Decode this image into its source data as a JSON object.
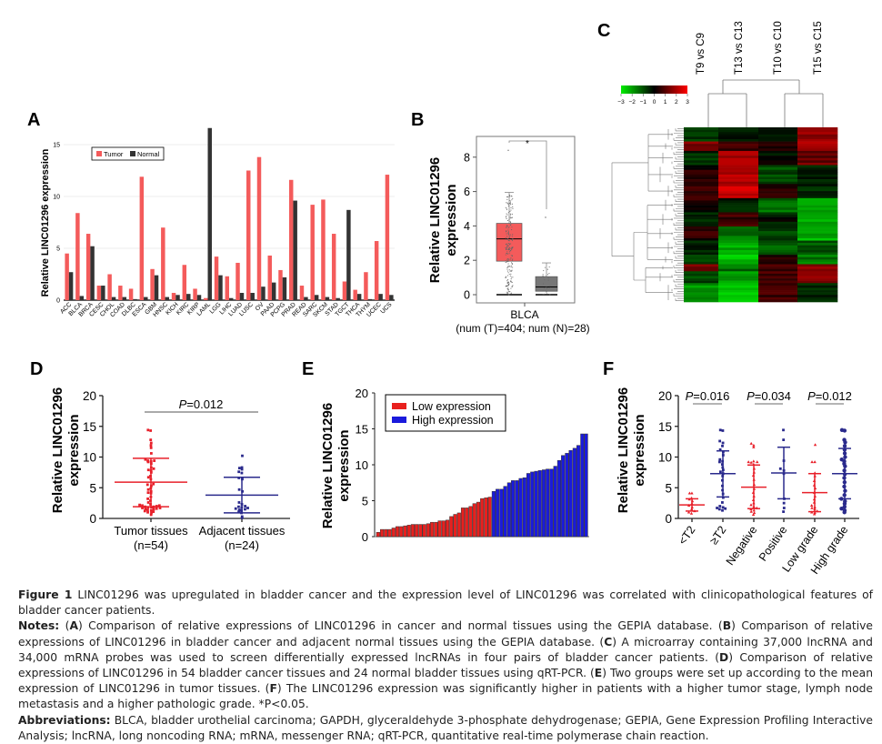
{
  "chart_data": [
    {
      "panel": "A",
      "type": "bar",
      "title": "",
      "xlabel": "",
      "ylabel": "Relative LINC01296 expression",
      "ylim": [
        0,
        17
      ],
      "yticks": [
        "0",
        "5",
        "10",
        "15"
      ],
      "grid": true,
      "legend_position": "top-left",
      "categories": [
        "ACC",
        "BLCA",
        "BRCA",
        "CESC",
        "CHOL",
        "COAD",
        "DLBC",
        "ESCA",
        "GBM",
        "HNSC",
        "KICH",
        "KIRC",
        "KIRP",
        "LAML",
        "LGG",
        "LIHC",
        "LUAD",
        "LUSC",
        "OV",
        "PAAD",
        "PCPG",
        "PRAD",
        "READ",
        "SARC",
        "SKCM",
        "STAD",
        "TGCT",
        "THCA",
        "THYM",
        "UCEC",
        "UCS"
      ],
      "series": [
        {
          "name": "Tumor",
          "color": "#f45b5b",
          "values": [
            4.5,
            8.4,
            6.4,
            1.4,
            2.5,
            1.4,
            1.1,
            11.9,
            3.0,
            7.0,
            0.7,
            3.4,
            1.1,
            0.2,
            4.2,
            2.3,
            3.6,
            12.5,
            13.8,
            4.3,
            2.9,
            11.6,
            1.4,
            9.2,
            9.7,
            6.4,
            1.8,
            1.0,
            2.7,
            5.7,
            12.1
          ]
        },
        {
          "name": "Normal",
          "color": "#333333",
          "values": [
            2.7,
            0.4,
            5.2,
            1.4,
            0.3,
            0.3,
            0.1,
            0.3,
            2.4,
            0.3,
            0.5,
            0.6,
            0.5,
            16.6,
            2.4,
            0.2,
            0.7,
            0.7,
            1.3,
            1.7,
            2.2,
            9.6,
            0.3,
            0.5,
            0.3,
            0.2,
            8.7,
            0.6,
            0.1,
            0.6,
            0.5
          ]
        }
      ]
    },
    {
      "panel": "B",
      "type": "box",
      "title": "",
      "xlabel": "BLCA",
      "xsublabel": "(num (T)=404; num (N)=28)",
      "ylabel": "Relative LINC01296 expression",
      "ylim": [
        -0.3,
        9.4
      ],
      "yticks": [
        "0",
        "2",
        "4",
        "6",
        "8"
      ],
      "significance": "*",
      "boxes": [
        {
          "name": "Tumor",
          "color": "#f45b5b",
          "q1": 1.95,
          "median": 3.25,
          "q3": 4.15,
          "whisker_low": 0,
          "whisker_high": 5.95,
          "outliers": [
            8.4
          ],
          "n": 404
        },
        {
          "name": "Normal",
          "color": "#777777",
          "q1": 0.2,
          "median": 0.45,
          "q3": 1.05,
          "whisker_low": 0,
          "whisker_high": 1.85,
          "outliers": [
            4.5
          ],
          "n": 28
        }
      ]
    },
    {
      "panel": "C",
      "type": "heatmap",
      "title": "",
      "columns": [
        "T9 vs C9",
        "T13 vs C13",
        "T10 vs C10",
        "T15 vs C15"
      ],
      "colorscale": {
        "min": -3,
        "max": 3,
        "low": "#00dd00",
        "mid": "#000000",
        "high": "#ff0000",
        "ticks": [
          "−3",
          "−2",
          "−1",
          "0",
          "1",
          "2",
          "3"
        ]
      },
      "row_blocks": [
        {
          "rows": 6,
          "values": [
            -0.8,
            -0.3,
            -0.6,
            1.8
          ]
        },
        {
          "rows": 4,
          "values": [
            1.5,
            0.8,
            0.6,
            2.0
          ]
        },
        {
          "rows": 6,
          "values": [
            -0.6,
            1.8,
            -0.2,
            1.2
          ]
        },
        {
          "rows": 8,
          "values": [
            0.3,
            2.0,
            -0.9,
            -0.3
          ]
        },
        {
          "rows": 6,
          "values": [
            0.6,
            2.3,
            0.5,
            -0.5
          ]
        },
        {
          "rows": 6,
          "values": [
            0.4,
            -0.3,
            -1.4,
            -2.0
          ]
        },
        {
          "rows": 6,
          "values": [
            -0.5,
            0.7,
            -0.3,
            -2.2
          ]
        },
        {
          "rows": 6,
          "values": [
            0.5,
            -1.6,
            -0.8,
            -2.4
          ]
        },
        {
          "rows": 6,
          "values": [
            -0.3,
            -2.3,
            -1.2,
            -1.1
          ]
        },
        {
          "rows": 4,
          "values": [
            -0.8,
            -2.6,
            0.6,
            -1.6
          ]
        },
        {
          "rows": 3,
          "values": [
            1.3,
            -1.4,
            0.8,
            1.8
          ]
        },
        {
          "rows": 5,
          "values": [
            -1.0,
            -2.2,
            0.9,
            1.5
          ]
        },
        {
          "rows": 8,
          "values": [
            -2.0,
            -2.6,
            0.8,
            -0.4
          ]
        }
      ]
    },
    {
      "panel": "D",
      "type": "scatter",
      "title": "",
      "ylabel": "Relative LINC01296 expression",
      "ylim": [
        0,
        20
      ],
      "yticks": [
        "0",
        "5",
        "10",
        "15",
        "20"
      ],
      "categories": [
        "Tumor tissues",
        "Adjacent tissues"
      ],
      "category_n": [
        "(n=54)",
        "(n=24)"
      ],
      "pvalue_label": "P",
      "pvalue_value": "=0.012",
      "groups": [
        {
          "name": "Tumor tissues",
          "color": "#e8202a",
          "mean": 5.9,
          "sd_low": 1.9,
          "sd_high": 9.8,
          "points": [
            0.6,
            0.9,
            1.0,
            1.1,
            1.2,
            1.3,
            1.4,
            1.5,
            1.5,
            1.6,
            1.7,
            1.7,
            1.8,
            1.8,
            1.9,
            1.9,
            2.0,
            2.1,
            2.1,
            2.2,
            2.3,
            2.6,
            2.9,
            3.2,
            3.5,
            4.1,
            4.2,
            4.4,
            4.7,
            4.9,
            5.3,
            5.5,
            5.6,
            6.4,
            6.7,
            6.9,
            7.5,
            7.8,
            7.9,
            8.1,
            8.3,
            8.9,
            9.2,
            9.3,
            9.4,
            9.4,
            9.6,
            10.6,
            11.5,
            11.9,
            12.3,
            12.8,
            14.3,
            14.4
          ]
        },
        {
          "name": "Adjacent tissues",
          "color": "#2a2a8c",
          "mean": 3.8,
          "sd_low": 0.9,
          "sd_high": 6.7,
          "points": [
            0.1,
            0.3,
            0.9,
            1.1,
            1.3,
            1.4,
            1.5,
            1.6,
            1.7,
            1.8,
            1.9,
            2.0,
            2.3,
            2.6,
            4.4,
            4.7,
            6.4,
            6.6,
            7.4,
            7.6,
            8.0,
            8.2,
            8.3,
            10.2
          ]
        }
      ]
    },
    {
      "panel": "E",
      "type": "bar",
      "title": "",
      "ylabel": "Relative LINC01296 expression",
      "ylim": [
        0,
        20
      ],
      "yticks": [
        "0",
        "5",
        "10",
        "15",
        "20"
      ],
      "legend_position": "top-left",
      "series": [
        {
          "name": "Low expression",
          "color": "#e8201e",
          "values": [
            0.6,
            1.0,
            1.0,
            1.0,
            1.2,
            1.4,
            1.4,
            1.5,
            1.6,
            1.7,
            1.7,
            1.7,
            1.7,
            1.8,
            2.0,
            2.0,
            2.2,
            2.2,
            2.3,
            2.8,
            3.1,
            3.3,
            4.0,
            4.0,
            4.2,
            4.6,
            4.8,
            5.3,
            5.4,
            5.5
          ]
        },
        {
          "name": "High expression",
          "color": "#1a1adc",
          "values": [
            6.3,
            6.6,
            6.6,
            7.0,
            7.5,
            7.8,
            7.8,
            8.1,
            8.2,
            8.8,
            9.0,
            9.1,
            9.2,
            9.3,
            9.4,
            9.4,
            9.8,
            10.6,
            11.3,
            11.6,
            12.0,
            12.3,
            12.7,
            14.3,
            14.3
          ]
        }
      ]
    },
    {
      "panel": "F",
      "type": "scatter",
      "title": "",
      "ylabel": "Relative LINC01296 expression",
      "ylim": [
        0,
        20
      ],
      "yticks": [
        "0",
        "5",
        "10",
        "15",
        "20"
      ],
      "categories": [
        "<T2",
        "≥T2",
        "Negative",
        "Positive",
        "Low grade",
        "High grade"
      ],
      "comparisons": [
        {
          "groups": [
            0,
            1
          ],
          "label": "P",
          "value": "=0.016"
        },
        {
          "groups": [
            2,
            3
          ],
          "label": "P",
          "value": "=0.034"
        },
        {
          "groups": [
            4,
            5
          ],
          "label": "P",
          "value": "=0.012"
        }
      ],
      "groups": [
        {
          "name": "<T2",
          "color": "#e8202a",
          "mean": 2.2,
          "sd_low": 1.2,
          "sd_high": 3.2,
          "points": [
            0.8,
            1.0,
            1.2,
            1.5,
            1.8,
            2.1,
            2.4,
            2.8,
            3.1,
            3.3,
            4.1,
            4.1
          ]
        },
        {
          "name": "≥T2",
          "color": "#2a2a8c",
          "mean": 7.3,
          "sd_low": 3.5,
          "sd_high": 11.0,
          "points": [
            1.3,
            1.5,
            1.6,
            1.7,
            1.8,
            2.0,
            2.6,
            3.4,
            4.0,
            4.6,
            5.3,
            6.2,
            6.9,
            7.3,
            7.6,
            7.9,
            8.3,
            8.8,
            9.2,
            9.3,
            9.6,
            10.3,
            10.8,
            11.2,
            11.8,
            12.3,
            12.6,
            14.3,
            14.4
          ]
        },
        {
          "name": "Negative",
          "color": "#e8202a",
          "mean": 5.1,
          "sd_low": 1.6,
          "sd_high": 8.7,
          "points": [
            0.6,
            0.9,
            1.1,
            1.3,
            1.5,
            1.7,
            1.9,
            2.2,
            2.5,
            3.0,
            3.6,
            4.2,
            4.8,
            5.5,
            6.3,
            7.0,
            7.5,
            8.1,
            8.8,
            9.1,
            9.2,
            9.2,
            9.3,
            11.6,
            11.9,
            12.2
          ]
        },
        {
          "name": "Positive",
          "color": "#2a2a8c",
          "mean": 7.4,
          "sd_low": 3.2,
          "sd_high": 11.6,
          "points": [
            1.1,
            1.7,
            2.5,
            3.2,
            7.3,
            7.8,
            8.1,
            9.4,
            12.8,
            14.4
          ]
        },
        {
          "name": "Low grade",
          "color": "#e8202a",
          "mean": 4.2,
          "sd_low": 1.1,
          "sd_high": 7.3,
          "points": [
            0.7,
            0.9,
            1.0,
            1.2,
            1.5,
            1.7,
            1.8,
            2.1,
            2.6,
            3.1,
            3.6,
            4.2,
            4.9,
            5.4,
            6.1,
            6.9,
            7.4,
            9.2,
            9.2,
            12.0
          ]
        },
        {
          "name": "High grade",
          "color": "#2a2a8c",
          "mean": 7.3,
          "sd_low": 3.2,
          "sd_high": 11.4,
          "points": [
            1.0,
            1.3,
            1.6,
            1.9,
            2.4,
            2.8,
            3.2,
            3.8,
            4.5,
            5.2,
            5.9,
            6.6,
            7.2,
            7.8,
            8.5,
            8.9,
            9.3,
            9.6,
            10.0,
            10.6,
            11.2,
            11.8,
            12.4,
            12.8,
            14.3,
            14.4
          ]
        }
      ]
    }
  ],
  "panels": {
    "A": {
      "letter": "A",
      "legend": [
        "Tumor",
        "Normal"
      ]
    },
    "B": {
      "letter": "B",
      "ylabel_line1": "Relative LINC01296",
      "ylabel_line2": "expression"
    },
    "C": {
      "letter": "C"
    },
    "D": {
      "letter": "D",
      "ylabel_line1": "Relative LINC01296",
      "ylabel_line2": "expression"
    },
    "E": {
      "letter": "E",
      "ylabel_line1": "Relative LINC01296",
      "ylabel_line2": "expression"
    },
    "F": {
      "letter": "F",
      "ylabel_line1": "Relative LINC01296",
      "ylabel_line2": "expression"
    }
  },
  "caption": {
    "figure_label": "Figure 1",
    "figure_title": "LINC01296 was upregulated in bladder cancer and the expression level of LINC01296 was correlated with clinicopathological features of bladder cancer patients.",
    "notes_label": "Notes:",
    "notes": [
      {
        "panel": "A",
        "text": "Comparison of relative expressions of LINC01296 in cancer and normal tissues using the GEPIA database."
      },
      {
        "panel": "B",
        "text": "Comparison of relative expressions of LINC01296 in bladder cancer and adjacent normal tissues using the GEPIA database."
      },
      {
        "panel": "C",
        "text": "A microarray containing 37,000 lncRNA and 34,000 mRNA probes was used to screen differentially expressed lncRNAs in four pairs of bladder cancer patients."
      },
      {
        "panel": "D",
        "text": "Comparison of relative expressions of LINC01296 in 54 bladder cancer tissues and 24 normal bladder tissues using qRT-PCR."
      },
      {
        "panel": "E",
        "text": "Two groups were set up according to the mean expression of LINC01296 in tumor tissues."
      },
      {
        "panel": "F",
        "text": "The LINC01296 expression was significantly higher in patients with a higher tumor stage, lymph node metastasis and a higher pathologic grade."
      }
    ],
    "significance_note": "*P<0.05.",
    "abbreviations_label": "Abbreviations:",
    "abbreviations": "BLCA, bladder urothelial carcinoma; GAPDH, glyceraldehyde 3-phosphate dehydrogenase; GEPIA, Gene Expression Profiling Interactive Analysis; lncRNA, long noncoding RNA; mRNA, messenger RNA; qRT-PCR, quantitative real-time polymerase chain reaction."
  }
}
